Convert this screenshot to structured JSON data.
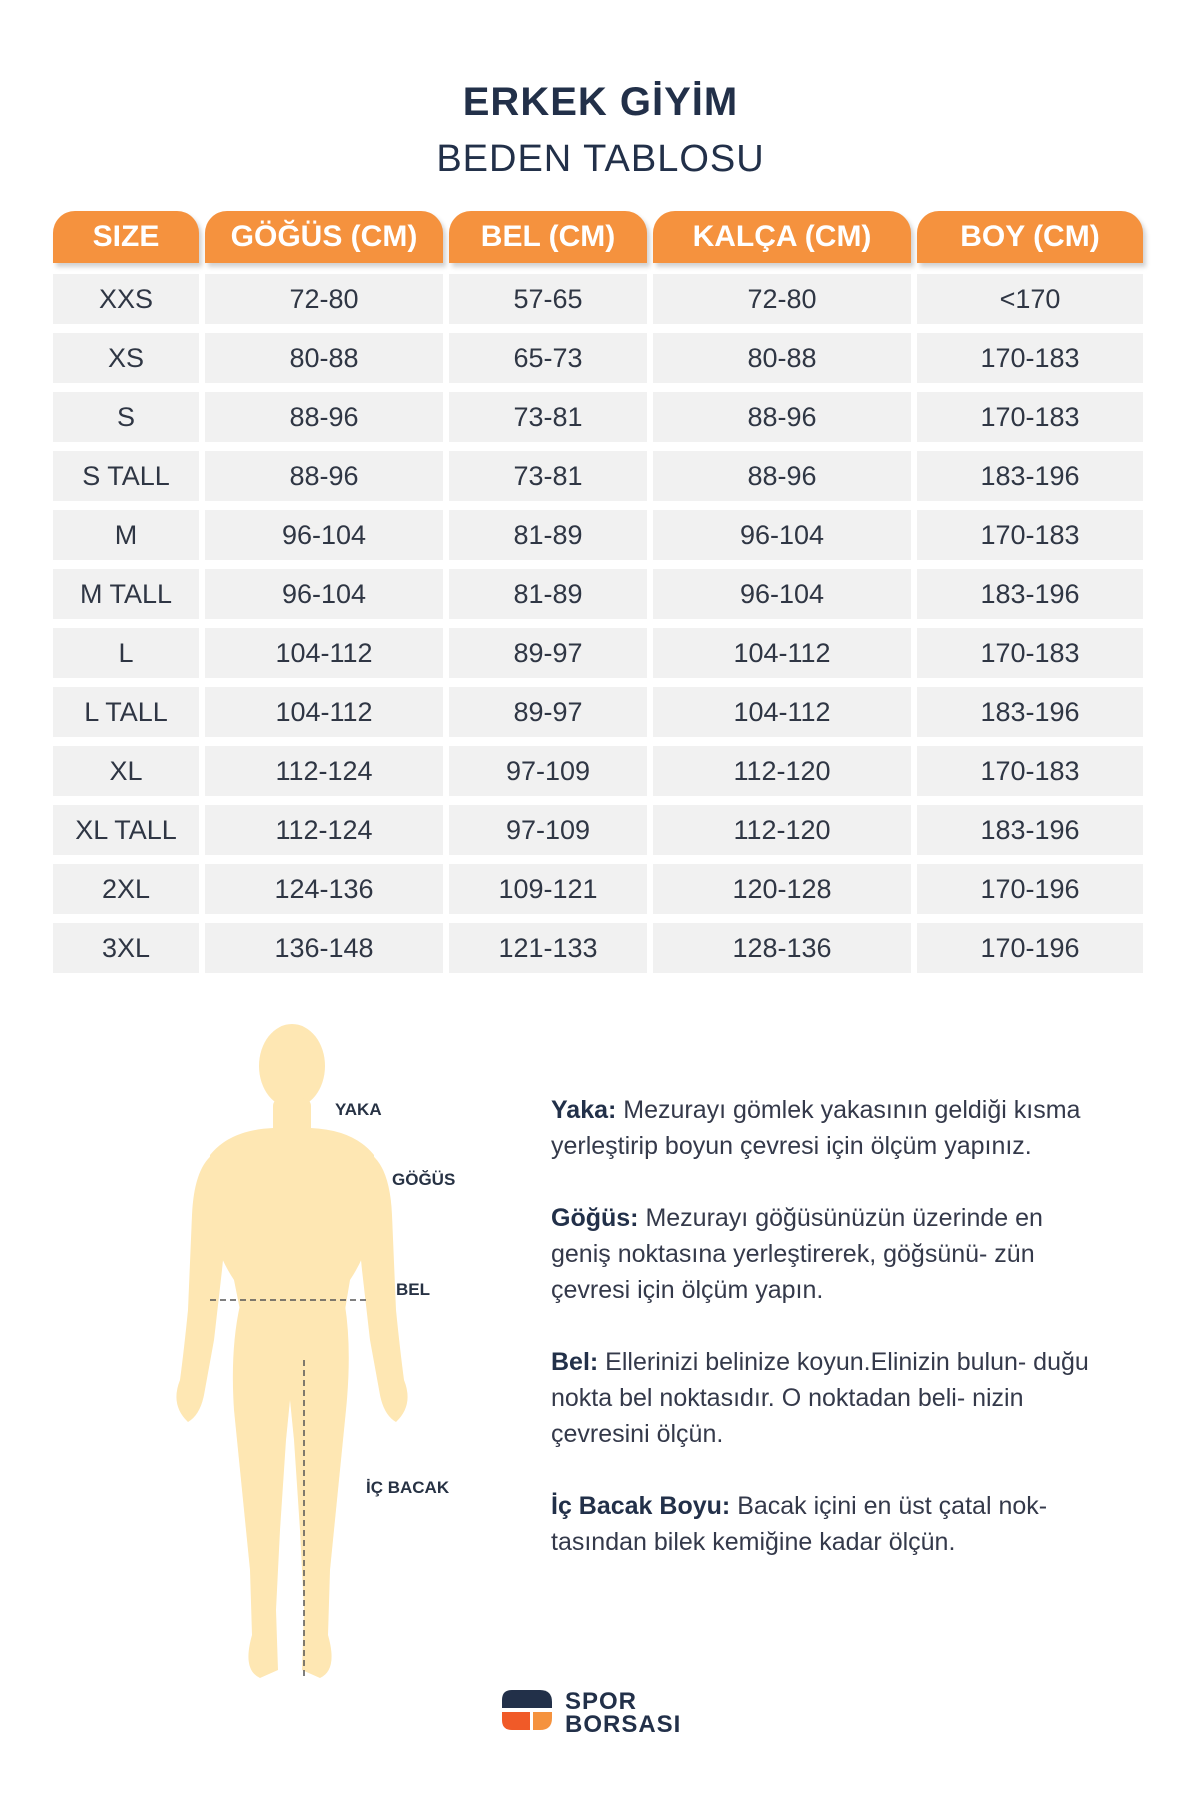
{
  "header": {
    "title": "ERKEK GİYİM",
    "subtitle": "BEDEN TABLOSU"
  },
  "table": {
    "headers": [
      "SIZE",
      "GÖĞÜS (CM)",
      "BEL (CM)",
      "KALÇA (CM)",
      "BOY (CM)"
    ],
    "rows": [
      [
        "XXS",
        "72-80",
        "57-65",
        "72-80",
        "<170"
      ],
      [
        "XS",
        "80-88",
        "65-73",
        "80-88",
        "170-183"
      ],
      [
        "S",
        "88-96",
        "73-81",
        "88-96",
        "170-183"
      ],
      [
        "S TALL",
        "88-96",
        "73-81",
        "88-96",
        "183-196"
      ],
      [
        "M",
        "96-104",
        "81-89",
        "96-104",
        "170-183"
      ],
      [
        "M TALL",
        "96-104",
        "81-89",
        "96-104",
        "183-196"
      ],
      [
        "L",
        "104-112",
        "89-97",
        "104-112",
        "170-183"
      ],
      [
        "L TALL",
        "104-112",
        "89-97",
        "104-112",
        "183-196"
      ],
      [
        "XL",
        "112-124",
        "97-109",
        "112-120",
        "170-183"
      ],
      [
        "XL TALL",
        "112-124",
        "97-109",
        "112-120",
        "183-196"
      ],
      [
        "2XL",
        "124-136",
        "109-121",
        "120-128",
        "170-196"
      ],
      [
        "3XL",
        "136-148",
        "121-133",
        "128-136",
        "170-196"
      ]
    ]
  },
  "body_labels": {
    "yaka": "YAKA",
    "gogus": "GÖĞÜS",
    "bel": "BEL",
    "ic_bacak": "İÇ BACAK"
  },
  "instructions": [
    {
      "label": "Yaka:",
      "text": " Mezurayı gömlek yakasının geldiği kısma yerleştirip boyun çevresi için ölçüm yapınız."
    },
    {
      "label": "Göğüs:",
      "text": " Mezurayı göğüsünüzün üzerinde en geniş noktasına yerleştirerek, göğsünü- zün çevresi için ölçüm yapın."
    },
    {
      "label": "Bel:",
      "text": " Ellerinizi belinize koyun.Elinizin bulun- duğu nokta bel noktasıdır. O noktadan beli- nizin çevresini ölçün."
    },
    {
      "label": "İç Bacak Boyu:",
      "text": " Bacak içini en üst çatal nok- tasından bilek kemiğine kadar ölçün."
    }
  ],
  "brand": {
    "line1": "SPOR",
    "line2": "BORSASI"
  },
  "colors": {
    "accent": "#f5923e",
    "dark": "#223049",
    "body": "#fee7b3",
    "cell": "#f1f1f1"
  }
}
